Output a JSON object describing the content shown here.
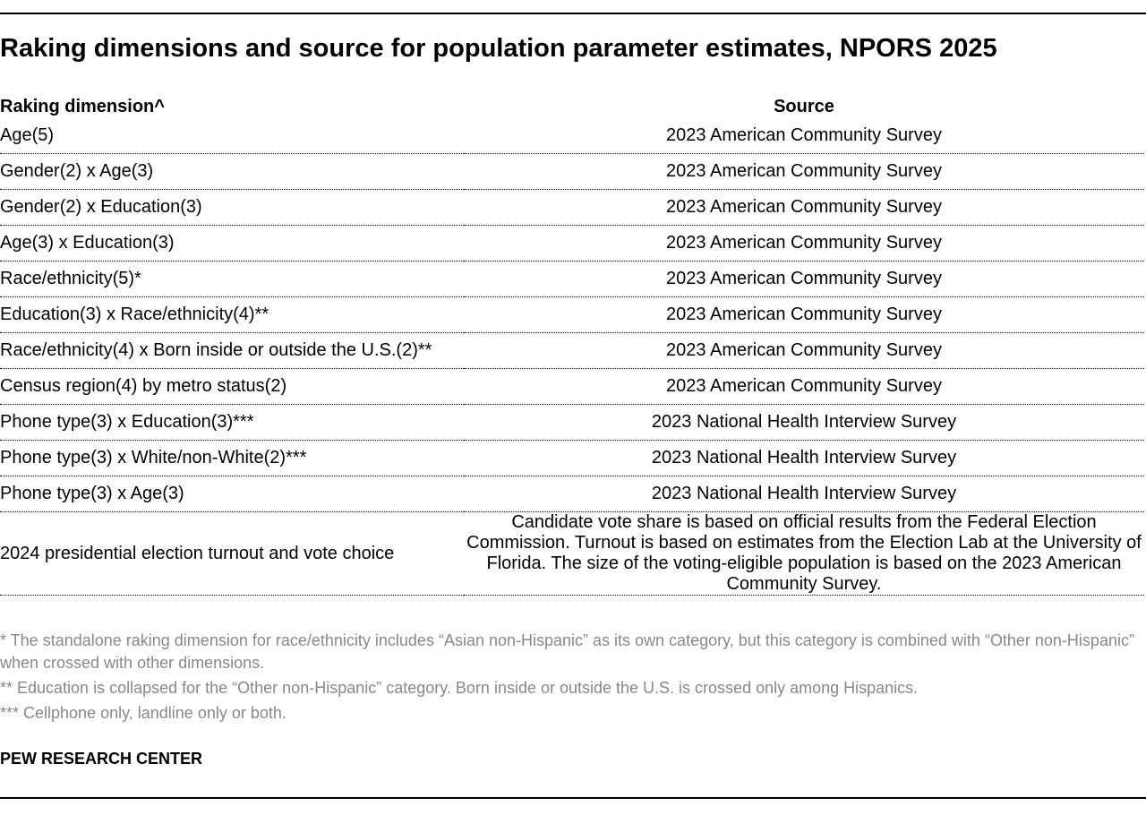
{
  "title": "Raking dimensions and source for population parameter estimates, NPORS 2025",
  "table": {
    "header": [
      "Raking dimension^",
      "Source"
    ],
    "rows": [
      [
        "Age(5)",
        "2023 American Community Survey"
      ],
      [
        "Gender(2) x Age(3)",
        "2023 American Community Survey"
      ],
      [
        "Gender(2) x Education(3)",
        "2023 American Community Survey"
      ],
      [
        "Age(3) x Education(3)",
        "2023 American Community Survey"
      ],
      [
        "Race/ethnicity(5)*",
        "2023 American Community Survey"
      ],
      [
        "Education(3) x Race/ethnicity(4)**",
        "2023 American Community Survey"
      ],
      [
        "Race/ethnicity(4) x Born inside or outside the U.S.(2)**",
        "2023 American Community Survey"
      ],
      [
        "Census region(4) by metro status(2)",
        "2023 American Community Survey"
      ],
      [
        "Phone type(3) x Education(3)***",
        "2023 National Health Interview Survey"
      ],
      [
        "Phone type(3) x White/non-White(2)***",
        "2023 National Health Interview Survey"
      ],
      [
        "Phone type(3) x Age(3)",
        "2023 National Health Interview Survey"
      ],
      [
        "2024 presidential election turnout and vote choice",
        "Candidate vote share is based on official results from the Federal Election Commission. Turnout is based on estimates from the Election Lab at the University of Florida. The size of the voting-eligible population is based on the 2023 American Community Survey."
      ]
    ]
  },
  "notes": [
    "* The standalone raking dimension for race/ethnicity includes “Asian non-Hispanic” as its own category, but this category is combined with “Other non-Hispanic” when crossed with other dimensions.",
    "** Education is collapsed for the “Other non-Hispanic” category. Born inside or outside the U.S. is crossed only among Hispanics.",
    "*** Cellphone only, landline only or both."
  ],
  "source": "PEW RESEARCH CENTER"
}
